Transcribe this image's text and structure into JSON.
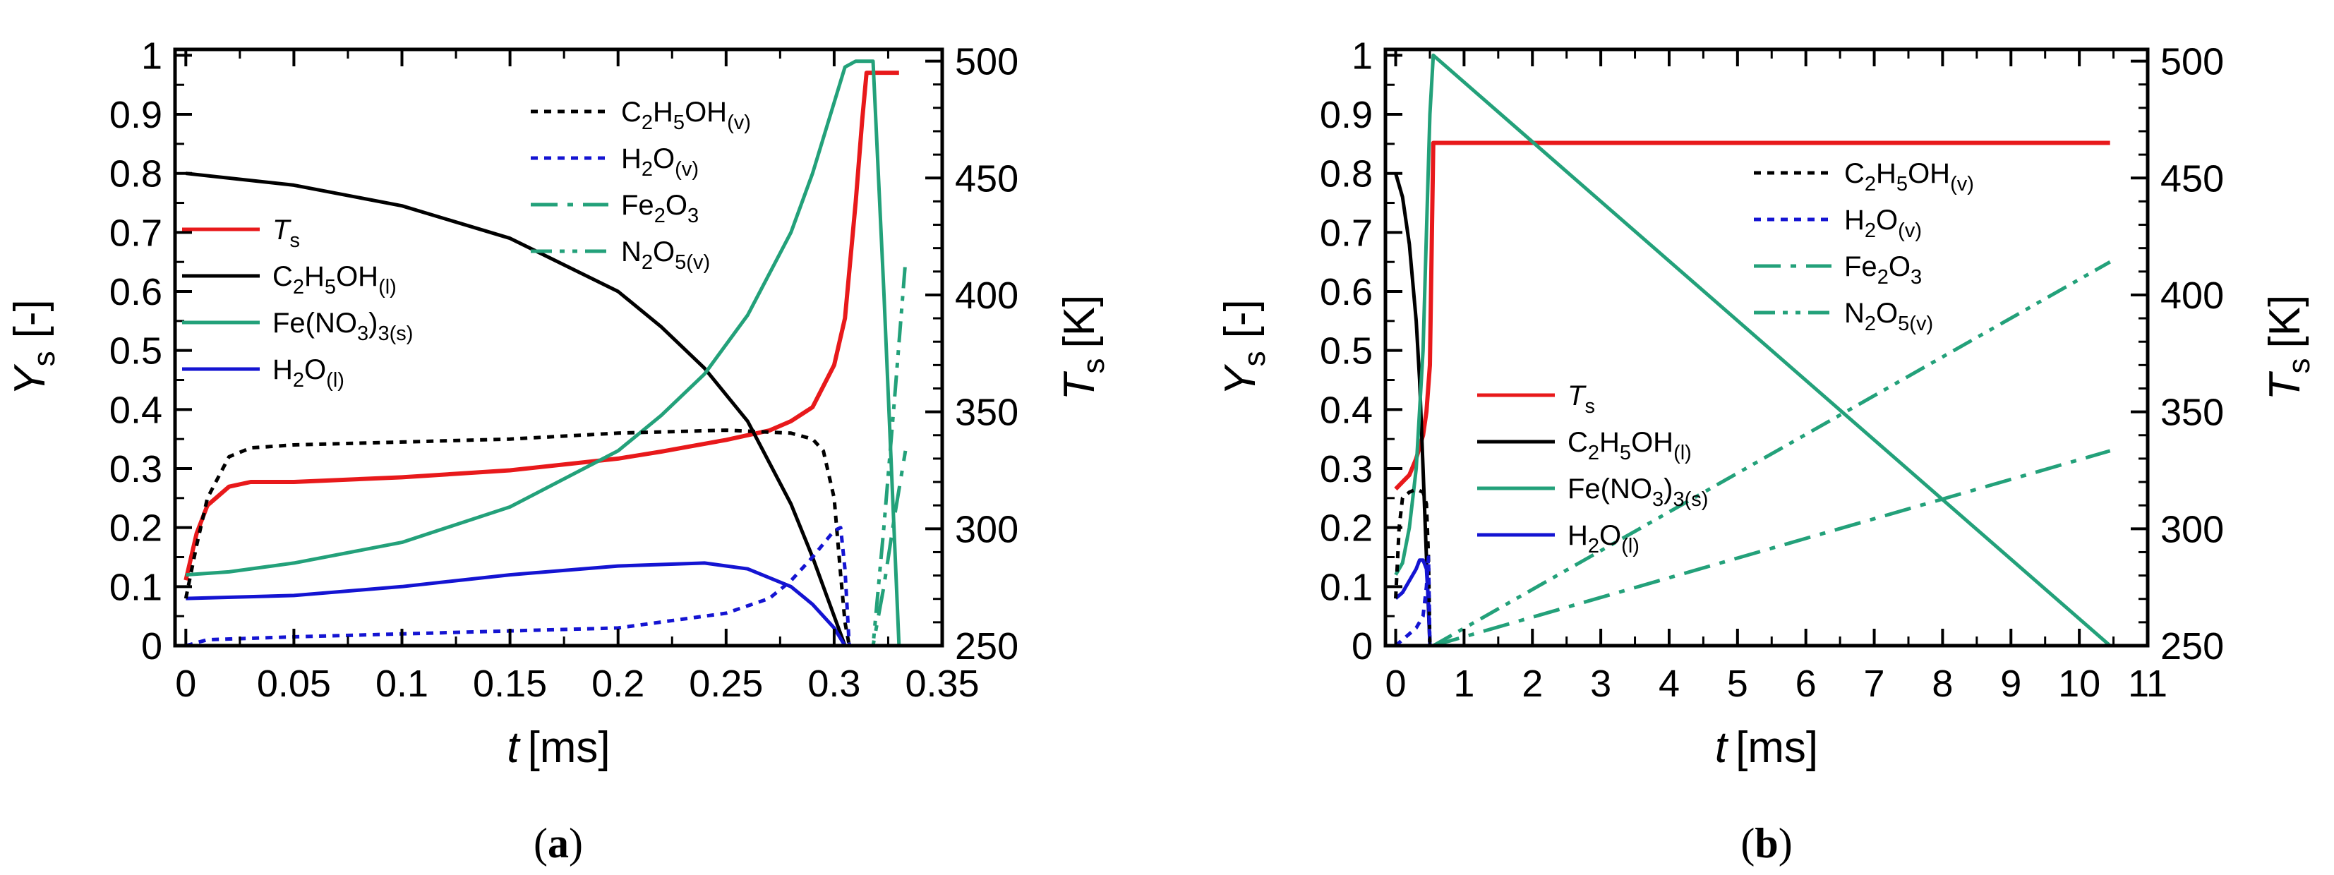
{
  "panels": [
    {
      "caption_open": "(",
      "caption_letter": "a",
      "caption_close": ")",
      "chart_data": {
        "type": "line",
        "xlabel_symbol": "t",
        "xlabel_unit": "[ms]",
        "ylabel_symbol": "Y",
        "ylabel_sub": "s",
        "ylabel_unit": "[-]",
        "y2label_symbol": "T",
        "y2label_sub": "s",
        "y2label_unit": "[K]",
        "xlim": [
          -0.005,
          0.35
        ],
        "ylim": [
          0,
          1.01
        ],
        "y2lim": [
          250,
          505
        ],
        "xticks": [
          0,
          0.05,
          0.1,
          0.15,
          0.2,
          0.25,
          0.3,
          0.35
        ],
        "xtick_labels": [
          "0",
          "0.05",
          "0.1",
          "0.15",
          "0.2",
          "0.25",
          "0.3",
          "0.35"
        ],
        "yticks": [
          0,
          0.1,
          0.2,
          0.3,
          0.4,
          0.5,
          0.6,
          0.7,
          0.8,
          0.9,
          1
        ],
        "ytick_labels": [
          "0",
          "0.1",
          "0.2",
          "0.3",
          "0.4",
          "0.5",
          "0.6",
          "0.7",
          "0.8",
          "0.9",
          "1"
        ],
        "y2ticks": [
          250,
          300,
          350,
          400,
          450,
          500
        ],
        "y2tick_labels": [
          "250",
          "300",
          "350",
          "400",
          "450",
          "500"
        ],
        "series": [
          {
            "id": "Ts",
            "axis": "right",
            "color": "#e8191b",
            "dash": "solid",
            "legend_group": 1,
            "label_parts": [
              {
                "t": "T",
                "italic": true
              },
              {
                "t": "s",
                "sub": true
              }
            ],
            "x": [
              0,
              0.005,
              0.01,
              0.02,
              0.03,
              0.05,
              0.1,
              0.15,
              0.2,
              0.22,
              0.25,
              0.27,
              0.28,
              0.29,
              0.3,
              0.305,
              0.31,
              0.313,
              0.315,
              0.33
            ],
            "y": [
              278,
              298,
              310,
              318,
              320,
              320,
              322,
              325,
              330,
              333,
              338,
              342,
              346,
              352,
              370,
              390,
              440,
              475,
              495,
              495
            ]
          },
          {
            "id": "C2H5OH_l",
            "axis": "left",
            "color": "#000000",
            "dash": "solid",
            "legend_group": 1,
            "label_parts": [
              {
                "t": "C"
              },
              {
                "t": "2",
                "sub": true
              },
              {
                "t": "H"
              },
              {
                "t": "5",
                "sub": true
              },
              {
                "t": "OH"
              },
              {
                "t": "(l)",
                "sub": true
              }
            ],
            "x": [
              0,
              0.05,
              0.1,
              0.15,
              0.2,
              0.22,
              0.24,
              0.26,
              0.28,
              0.29,
              0.3,
              0.305
            ],
            "y": [
              0.8,
              0.78,
              0.745,
              0.69,
              0.6,
              0.54,
              0.47,
              0.38,
              0.24,
              0.15,
              0.05,
              0
            ]
          },
          {
            "id": "FeNO3",
            "axis": "left",
            "color": "#23a17a",
            "dash": "solid",
            "legend_group": 1,
            "label_parts": [
              {
                "t": "Fe(NO"
              },
              {
                "t": "3",
                "sub": true
              },
              {
                "t": ")"
              },
              {
                "t": "3(s)",
                "sub": true
              }
            ],
            "x": [
              0,
              0.02,
              0.05,
              0.1,
              0.15,
              0.2,
              0.22,
              0.24,
              0.26,
              0.28,
              0.29,
              0.3,
              0.305,
              0.31,
              0.318,
              0.323,
              0.33
            ],
            "y": [
              0.12,
              0.125,
              0.14,
              0.175,
              0.235,
              0.33,
              0.39,
              0.46,
              0.56,
              0.7,
              0.8,
              0.92,
              0.98,
              0.99,
              0.99,
              0.6,
              0
            ]
          },
          {
            "id": "H2O_l",
            "axis": "left",
            "color": "#1414d2",
            "dash": "solid",
            "legend_group": 1,
            "label_parts": [
              {
                "t": "H"
              },
              {
                "t": "2",
                "sub": true
              },
              {
                "t": "O"
              },
              {
                "t": "(l)",
                "sub": true
              }
            ],
            "x": [
              0,
              0.05,
              0.1,
              0.15,
              0.2,
              0.24,
              0.26,
              0.28,
              0.29,
              0.3,
              0.305
            ],
            "y": [
              0.08,
              0.085,
              0.1,
              0.12,
              0.135,
              0.14,
              0.13,
              0.1,
              0.07,
              0.03,
              0
            ]
          },
          {
            "id": "C2H5OH_v",
            "axis": "left",
            "color": "#000000",
            "dash": "dot",
            "legend_group": 2,
            "label_parts": [
              {
                "t": "C"
              },
              {
                "t": "2",
                "sub": true
              },
              {
                "t": "H"
              },
              {
                "t": "5",
                "sub": true
              },
              {
                "t": "OH"
              },
              {
                "t": "(v)",
                "sub": true
              }
            ],
            "x": [
              0,
              0.005,
              0.01,
              0.02,
              0.03,
              0.05,
              0.1,
              0.15,
              0.2,
              0.25,
              0.28,
              0.29,
              0.295,
              0.3,
              0.303,
              0.305,
              0.307
            ],
            "y": [
              0.08,
              0.17,
              0.25,
              0.32,
              0.335,
              0.34,
              0.345,
              0.35,
              0.36,
              0.365,
              0.36,
              0.35,
              0.33,
              0.25,
              0.12,
              0.04,
              0
            ]
          },
          {
            "id": "H2O_v",
            "axis": "left",
            "color": "#1414d2",
            "dash": "dot",
            "legend_group": 2,
            "label_parts": [
              {
                "t": "H"
              },
              {
                "t": "2",
                "sub": true
              },
              {
                "t": "O"
              },
              {
                "t": "(v)",
                "sub": true
              }
            ],
            "x": [
              0,
              0.01,
              0.05,
              0.1,
              0.15,
              0.2,
              0.25,
              0.27,
              0.28,
              0.29,
              0.3,
              0.303,
              0.305,
              0.307
            ],
            "y": [
              0,
              0.01,
              0.015,
              0.02,
              0.025,
              0.03,
              0.055,
              0.08,
              0.11,
              0.15,
              0.195,
              0.2,
              0.13,
              0
            ]
          },
          {
            "id": "Fe2O3",
            "axis": "left",
            "color": "#23a17a",
            "dash": "dashdot",
            "legend_group": 2,
            "label_parts": [
              {
                "t": "Fe"
              },
              {
                "t": "2",
                "sub": true
              },
              {
                "t": "O"
              },
              {
                "t": "3",
                "sub": true
              }
            ],
            "x": [
              0.308,
              0.318,
              0.323,
              0.328,
              0.333
            ],
            "y": [
              0,
              0,
              0.1,
              0.22,
              0.33
            ]
          },
          {
            "id": "N2O5_v",
            "axis": "left",
            "color": "#23a17a",
            "dash": "dashdotdot",
            "legend_group": 2,
            "label_parts": [
              {
                "t": "N"
              },
              {
                "t": "2",
                "sub": true
              },
              {
                "t": "O"
              },
              {
                "t": "5(v)",
                "sub": true
              }
            ],
            "x": [
              0.308,
              0.318,
              0.323,
              0.328,
              0.333
            ],
            "y": [
              0,
              0,
              0.2,
              0.42,
              0.65
            ]
          }
        ]
      }
    },
    {
      "caption_open": "(",
      "caption_letter": "b",
      "caption_close": ")",
      "chart_data": {
        "type": "line",
        "xlabel_symbol": "t",
        "xlabel_unit": "[ms]",
        "ylabel_symbol": "Y",
        "ylabel_sub": "s",
        "ylabel_unit": "[-]",
        "y2label_symbol": "T",
        "y2label_sub": "s",
        "y2label_unit": "[K]",
        "xlim": [
          -0.15,
          11
        ],
        "ylim": [
          0,
          1.01
        ],
        "y2lim": [
          250,
          505
        ],
        "xticks": [
          0,
          1,
          2,
          3,
          4,
          5,
          6,
          7,
          8,
          9,
          10,
          11
        ],
        "xtick_labels": [
          "0",
          "1",
          "2",
          "3",
          "4",
          "5",
          "6",
          "7",
          "8",
          "9",
          "10",
          "11"
        ],
        "yticks": [
          0,
          0.1,
          0.2,
          0.3,
          0.4,
          0.5,
          0.6,
          0.7,
          0.8,
          0.9,
          1
        ],
        "ytick_labels": [
          "0",
          "0.1",
          "0.2",
          "0.3",
          "0.4",
          "0.5",
          "0.6",
          "0.7",
          "0.8",
          "0.9",
          "1"
        ],
        "y2ticks": [
          250,
          300,
          350,
          400,
          450,
          500
        ],
        "y2tick_labels": [
          "250",
          "300",
          "350",
          "400",
          "450",
          "500"
        ],
        "series": [
          {
            "id": "Ts",
            "axis": "right",
            "color": "#e8191b",
            "dash": "solid",
            "legend_group": 1,
            "label_parts": [
              {
                "t": "T",
                "italic": true
              },
              {
                "t": "s",
                "sub": true
              }
            ],
            "x": [
              0,
              0.1,
              0.2,
              0.3,
              0.4,
              0.45,
              0.5,
              0.55,
              10.45
            ],
            "y": [
              317,
              320,
              323,
              330,
              340,
              350,
              370,
              465,
              465
            ]
          },
          {
            "id": "C2H5OH_l",
            "axis": "left",
            "color": "#000000",
            "dash": "solid",
            "legend_group": 1,
            "label_parts": [
              {
                "t": "C"
              },
              {
                "t": "2",
                "sub": true
              },
              {
                "t": "H"
              },
              {
                "t": "5",
                "sub": true
              },
              {
                "t": "OH"
              },
              {
                "t": "(l)",
                "sub": true
              }
            ],
            "x": [
              0,
              0.1,
              0.2,
              0.3,
              0.35,
              0.4,
              0.45,
              0.5
            ],
            "y": [
              0.8,
              0.76,
              0.68,
              0.55,
              0.45,
              0.3,
              0.15,
              0
            ]
          },
          {
            "id": "FeNO3",
            "axis": "left",
            "color": "#23a17a",
            "dash": "solid",
            "legend_group": 1,
            "label_parts": [
              {
                "t": "Fe(NO"
              },
              {
                "t": "3",
                "sub": true
              },
              {
                "t": ")"
              },
              {
                "t": "3(s)",
                "sub": true
              }
            ],
            "x": [
              0,
              0.1,
              0.2,
              0.3,
              0.4,
              0.45,
              0.5,
              0.55,
              10.45
            ],
            "y": [
              0.12,
              0.14,
              0.2,
              0.3,
              0.5,
              0.7,
              0.9,
              1.0,
              0
            ]
          },
          {
            "id": "H2O_l",
            "axis": "left",
            "color": "#1414d2",
            "dash": "solid",
            "legend_group": 1,
            "label_parts": [
              {
                "t": "H"
              },
              {
                "t": "2",
                "sub": true
              },
              {
                "t": "O"
              },
              {
                "t": "(l)",
                "sub": true
              }
            ],
            "x": [
              0,
              0.1,
              0.2,
              0.3,
              0.35,
              0.4,
              0.45,
              0.48,
              0.5
            ],
            "y": [
              0.08,
              0.09,
              0.11,
              0.13,
              0.145,
              0.145,
              0.13,
              0.07,
              0
            ]
          },
          {
            "id": "C2H5OH_v",
            "axis": "left",
            "color": "#000000",
            "dash": "dot",
            "legend_group": 2,
            "label_parts": [
              {
                "t": "C"
              },
              {
                "t": "2",
                "sub": true
              },
              {
                "t": "H"
              },
              {
                "t": "5",
                "sub": true
              },
              {
                "t": "OH"
              },
              {
                "t": "(v)",
                "sub": true
              }
            ],
            "x": [
              0,
              0.05,
              0.1,
              0.2,
              0.3,
              0.4,
              0.45,
              0.48,
              0.5
            ],
            "y": [
              0.08,
              0.2,
              0.25,
              0.26,
              0.265,
              0.26,
              0.24,
              0.15,
              0
            ]
          },
          {
            "id": "H2O_v",
            "axis": "left",
            "color": "#1414d2",
            "dash": "dot",
            "legend_group": 2,
            "label_parts": [
              {
                "t": "H"
              },
              {
                "t": "2",
                "sub": true
              },
              {
                "t": "O"
              },
              {
                "t": "(v)",
                "sub": true
              }
            ],
            "x": [
              0,
              0.1,
              0.2,
              0.3,
              0.4,
              0.45,
              0.48,
              0.5
            ],
            "y": [
              0,
              0.01,
              0.02,
              0.03,
              0.05,
              0.1,
              0.15,
              0
            ]
          },
          {
            "id": "Fe2O3",
            "axis": "left",
            "color": "#23a17a",
            "dash": "dashdot",
            "legend_group": 2,
            "label_parts": [
              {
                "t": "Fe"
              },
              {
                "t": "2",
                "sub": true
              },
              {
                "t": "O"
              },
              {
                "t": "3",
                "sub": true
              }
            ],
            "x": [
              0.55,
              10.45
            ],
            "y": [
              0,
              0.33
            ]
          },
          {
            "id": "N2O5_v",
            "axis": "left",
            "color": "#23a17a",
            "dash": "dashdotdot",
            "legend_group": 2,
            "label_parts": [
              {
                "t": "N"
              },
              {
                "t": "2",
                "sub": true
              },
              {
                "t": "O"
              },
              {
                "t": "5(v)",
                "sub": true
              }
            ],
            "x": [
              0.55,
              10.45
            ],
            "y": [
              0,
              0.65
            ]
          }
        ]
      }
    }
  ]
}
